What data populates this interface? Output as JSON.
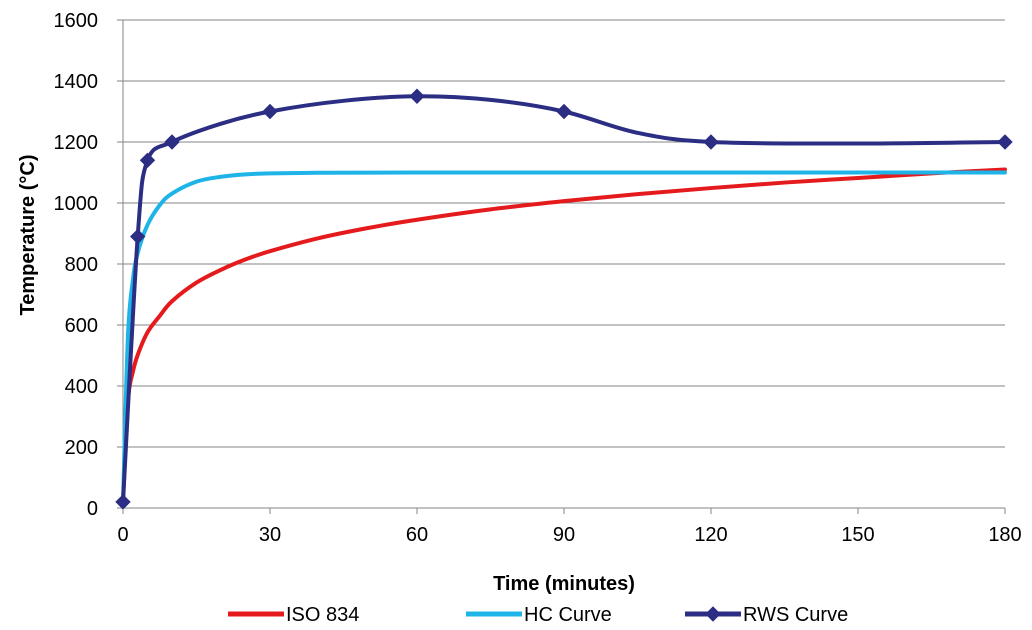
{
  "chart_data": {
    "type": "line",
    "title": "",
    "xlabel": "Time (minutes)",
    "ylabel": "Temperature (°C)",
    "xlim": [
      0,
      180
    ],
    "ylim": [
      0,
      1600
    ],
    "xticks": [
      "0",
      "30",
      "60",
      "90",
      "120",
      "150",
      "180"
    ],
    "yticks": [
      "0",
      "200",
      "400",
      "600",
      "800",
      "1000",
      "1200",
      "1400",
      "1600"
    ],
    "grid": "horizontal",
    "legend_position": "bottom",
    "series": [
      {
        "name": "ISO 834",
        "color": "#e41a1c",
        "marker": "none",
        "x": [
          0,
          1,
          2,
          3,
          5,
          7.5,
          10,
          15,
          20,
          25,
          30,
          40,
          50,
          60,
          75,
          90,
          105,
          120,
          135,
          150,
          165,
          180
        ],
        "y": [
          20,
          349,
          445,
          502,
          576,
          630,
          678,
          739,
          781,
          815,
          842,
          885,
          918,
          945,
          979,
          1006,
          1029,
          1049,
          1067,
          1082,
          1097,
          1110
        ]
      },
      {
        "name": "HC Curve",
        "color": "#1eb4e8",
        "marker": "none",
        "x": [
          0,
          1,
          2,
          3,
          5,
          7.5,
          10,
          15,
          20,
          25,
          30,
          40,
          60,
          90,
          120,
          150,
          180
        ],
        "y": [
          20,
          560,
          745,
          836,
          928,
          993,
          1031,
          1070,
          1086,
          1094,
          1097,
          1099,
          1100,
          1100,
          1100,
          1100,
          1100
        ]
      },
      {
        "name": "RWS Curve",
        "color": "#2b2e83",
        "marker": "diamond",
        "x": [
          0,
          3,
          5,
          10,
          30,
          60,
          90,
          120,
          180
        ],
        "y": [
          20,
          890,
          1140,
          1200,
          1300,
          1350,
          1300,
          1200,
          1200
        ],
        "smooth_x": [
          0,
          3,
          5,
          10,
          20,
          30,
          45,
          60,
          75,
          90,
          105,
          120,
          150,
          180
        ],
        "smooth_y": [
          20,
          890,
          1140,
          1200,
          1260,
          1300,
          1335,
          1350,
          1338,
          1300,
          1230,
          1200,
          1195,
          1200
        ]
      }
    ]
  }
}
